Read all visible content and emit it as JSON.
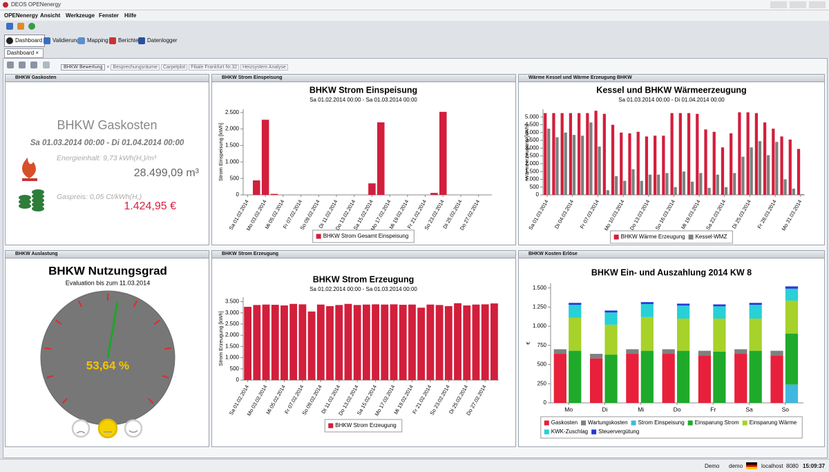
{
  "window": {
    "title": "DEOS OPENenergy"
  },
  "menu": [
    "OPENenergy",
    "Ansicht",
    "Werkzeuge",
    "Fenster",
    "Hilfe"
  ],
  "toolbar": [
    "Dashboard",
    "Validierung",
    "Mapping",
    "Berichte",
    "Datenlogger"
  ],
  "tab": "Dashboard",
  "subtabs": [
    "BHKW Bewertung",
    "Besprechungsräume",
    "Carpetplot",
    "Filiale Frankfurt Nr.32",
    "Heizsystem Analyse"
  ],
  "panels": [
    {
      "title": "BHKW Gaskosten"
    },
    {
      "title": "BHKW Strom Einspeisung"
    },
    {
      "title": "Wärme Kessel und Wärme Erzeugung BHKW"
    },
    {
      "title": "BHKW Auslastung"
    },
    {
      "title": "BHKW Strom Erzeugung"
    },
    {
      "title": "BHKW Kosten Erlöse"
    }
  ],
  "gaskosten": {
    "title": "BHKW Gaskosten",
    "period": "Sa 01.03.2014 00:00 - Di 01.04.2014 00:00",
    "energy_label": "Energieinhalt: 9,73 kWh(H,)/m³",
    "volume": "28.499,09 m³",
    "price_label": "Gaspreis: 0,05 Ct/kWh(H,)",
    "cost": "1.424,95 €"
  },
  "gauge": {
    "title": "BHKW Nutzungsgrad",
    "subtitle": "Evaluation bis zum 11.03.2014",
    "value": 53.64,
    "value_label": "53,64 %",
    "range": [
      0,
      100
    ],
    "color": "#1fa62a"
  },
  "chart_data": [
    {
      "type": "bar",
      "title": "BHKW Strom Einspeisung",
      "subtitle": "Sa 01.02.2014 00:00 - Sa 01.03.2014 00:00",
      "y_label": "Strom Einspeisung [kWh]",
      "categories": [
        "Sa 01.02.2014",
        null,
        "Mo 03.02.2014",
        null,
        "Mi 05.02.2014",
        null,
        "Fr 07.02.2014",
        null,
        "So 09.02.2014",
        null,
        "Di 11.02.2014",
        null,
        "Do 13.02.2014",
        null,
        "Sa 15.02.2014",
        null,
        "Mo 17.02.2014",
        null,
        "Mi 19.02.2014",
        null,
        "Fr 21.02.2014",
        null,
        "So 23.02.2014",
        null,
        "Di 25.02.2014",
        null,
        "Do 27.02.2014",
        null
      ],
      "series": [
        {
          "name": "BHKW Strom Gesamt Einspeisung",
          "color": "#d21f3c",
          "values": [
            0,
            440,
            2280,
            30,
            0,
            0,
            0,
            0,
            0,
            0,
            0,
            0,
            0,
            0,
            350,
            2200,
            0,
            0,
            0,
            0,
            0,
            60,
            2520,
            0,
            0,
            0,
            0,
            0
          ]
        }
      ],
      "ylim": [
        0,
        2600
      ],
      "yticks": [
        0,
        500,
        {
          "value": 1000,
          "label": "1.000"
        },
        {
          "value": 1500,
          "label": "1.500"
        },
        {
          "value": 2000,
          "label": "2.000"
        },
        {
          "value": 2500,
          "label": "2.500"
        }
      ]
    },
    {
      "type": "bar",
      "title": "Kessel und BHKW Wärmeerzeugung",
      "subtitle": "Sa 01.03.2014 00:00 - Di 01.04.2014 00:00",
      "y_label": "Wärmeerzeugung [kWh]",
      "categories": [
        "Sa 01.03.2014",
        null,
        null,
        "Di 04.03.2014",
        null,
        null,
        "Fr 07.03.2014",
        null,
        null,
        "Mo 10.03.2014",
        null,
        null,
        "Do 13.03.2014",
        null,
        null,
        "So 16.03.2014",
        null,
        null,
        "Mi 19.03.2014",
        null,
        null,
        "Sa 22.03.2014",
        null,
        null,
        "Di 25.03.2014",
        null,
        null,
        "Fr 28.03.2014",
        null,
        null,
        "Mo 31.03.2014"
      ],
      "series": [
        {
          "name": "BHKW Wärme Erzeugung",
          "color": "#d21f3c",
          "values": [
            5250,
            5250,
            5250,
            5250,
            5250,
            5250,
            5400,
            5200,
            4500,
            4000,
            3950,
            4050,
            3750,
            3800,
            3800,
            5250,
            5250,
            5250,
            5200,
            4200,
            4050,
            3050,
            3950,
            5300,
            5300,
            5250,
            4650,
            4250,
            3750,
            3550,
            2950
          ]
        },
        {
          "name": "Kessel-WMZ",
          "color": "#7f7f7f",
          "values": [
            4250,
            3700,
            4000,
            3850,
            3800,
            4650,
            3100,
            300,
            1200,
            900,
            1650,
            900,
            1300,
            1300,
            1400,
            500,
            1500,
            850,
            1400,
            450,
            1300,
            500,
            1400,
            2450,
            3050,
            3450,
            2550,
            3400,
            1000,
            400,
            50
          ]
        }
      ],
      "ylim": [
        0,
        5500
      ],
      "yticks": [
        0,
        500,
        {
          "value": 1000,
          "label": "1.000"
        },
        {
          "value": 1500,
          "label": "1.500"
        },
        {
          "value": 2000,
          "label": "2.000"
        },
        {
          "value": 2500,
          "label": "2.500"
        },
        {
          "value": 3000,
          "label": "3.000"
        },
        {
          "value": 3500,
          "label": "3.500"
        },
        {
          "value": 4000,
          "label": "4.000"
        },
        {
          "value": 4500,
          "label": "4.500"
        },
        {
          "value": 5000,
          "label": "5.000"
        }
      ]
    },
    {
      "type": "bar",
      "title": "BHKW Strom Erzeugung",
      "subtitle": "Sa 01.02.2014 00:00 - Sa 01.03.2014 00:00",
      "y_label": "Strom Erzeugung [kWh]",
      "categories": [
        "Sa 01.02.2014",
        null,
        "Mo 03.02.2014",
        null,
        "Mi 05.02.2014",
        null,
        "Fr 07.02.2014",
        null,
        "So 09.02.2014",
        null,
        "Di 11.02.2014",
        null,
        "Do 13.02.2014",
        null,
        "Sa 15.02.2014",
        null,
        "Mo 17.02.2014",
        null,
        "Mi 19.02.2014",
        null,
        "Fr 21.02.2014",
        null,
        "So 23.02.2014",
        null,
        "Di 25.02.2014",
        null,
        "Do 27.02.2014",
        null
      ],
      "series": [
        {
          "name": "BHKW Strom Erzeugung",
          "color": "#d21f3c",
          "values": [
            3270,
            3350,
            3370,
            3360,
            3330,
            3400,
            3380,
            3060,
            3370,
            3300,
            3350,
            3400,
            3350,
            3370,
            3380,
            3370,
            3380,
            3360,
            3370,
            3230,
            3370,
            3350,
            3300,
            3430,
            3330,
            3370,
            3380,
            3420
          ]
        }
      ],
      "ylim": [
        0,
        3700
      ],
      "yticks": [
        0,
        500,
        {
          "value": 1000,
          "label": "1.000"
        },
        {
          "value": 1500,
          "label": "1.500"
        },
        {
          "value": 2000,
          "label": "2.000"
        },
        {
          "value": 2500,
          "label": "2.500"
        },
        {
          "value": 3000,
          "label": "3.000"
        },
        {
          "value": 3500,
          "label": "3.500"
        }
      ]
    },
    {
      "type": "stacked_bar",
      "title": "BHKW Ein- und Auszahlung 2014 KW 8",
      "y_label": "€",
      "categories": [
        "Mo",
        "Di",
        "Mi",
        "Do",
        "Fr",
        "Sa",
        "So"
      ],
      "series": [
        {
          "name": "Gaskosten",
          "color": "#e8203b",
          "stack": 1,
          "values": [
            640,
            580,
            640,
            640,
            620,
            640,
            620
          ]
        },
        {
          "name": "Wartungskosten",
          "color": "#808080",
          "stack": 1,
          "values": [
            60,
            60,
            60,
            60,
            60,
            60,
            60
          ]
        },
        {
          "name": "Strom Einspeisung",
          "color": "#3fb8e0",
          "stack": 2,
          "values": [
            0,
            0,
            0,
            0,
            0,
            0,
            240
          ]
        },
        {
          "name": "Einsparung Strom",
          "color": "#1faa2b",
          "stack": 2,
          "values": [
            680,
            630,
            680,
            680,
            670,
            680,
            665
          ]
        },
        {
          "name": "Einsparung Wärme",
          "color": "#a6d22a",
          "stack": 2,
          "values": [
            430,
            390,
            440,
            420,
            430,
            420,
            430
          ]
        },
        {
          "name": "KWK-Zuschlag",
          "color": "#28d0d8",
          "stack": 2,
          "values": [
            170,
            160,
            170,
            170,
            160,
            180,
            155
          ]
        },
        {
          "name": "Steuervergütung",
          "color": "#2538d8",
          "stack": 2,
          "values": [
            25,
            25,
            25,
            25,
            25,
            25,
            30
          ]
        }
      ],
      "ylim": [
        0,
        1560
      ],
      "yticks": [
        0,
        250,
        500,
        750,
        {
          "value": 1000,
          "label": "1.000"
        },
        {
          "value": 1250,
          "label": "1.250"
        },
        {
          "value": 1500,
          "label": "1.500"
        }
      ]
    }
  ],
  "status": [
    "Demo",
    "demo",
    "localhost",
    "8080",
    "15:09:37"
  ]
}
